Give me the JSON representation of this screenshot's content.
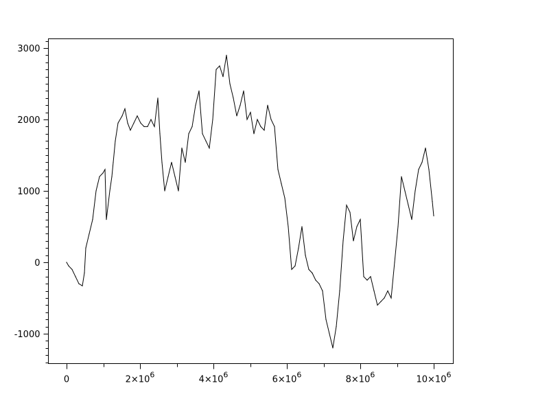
{
  "chart_data": {
    "type": "line",
    "title": "",
    "xlabel": "",
    "ylabel": "",
    "xlim": [
      -500000,
      10500000
    ],
    "ylim": [
      -1420,
      3120
    ],
    "grid": false,
    "line_color": "#000000",
    "x_ticks": [
      {
        "value": 0,
        "base": "0",
        "exp": ""
      },
      {
        "value": 2000000,
        "base": "2×10",
        "exp": "6"
      },
      {
        "value": 4000000,
        "base": "4×10",
        "exp": "6"
      },
      {
        "value": 6000000,
        "base": "6×10",
        "exp": "6"
      },
      {
        "value": 8000000,
        "base": "8×10",
        "exp": "6"
      },
      {
        "value": 10000000,
        "base": "10×10",
        "exp": "6"
      }
    ],
    "y_ticks": [
      {
        "value": 3000,
        "label": "3000"
      },
      {
        "value": 2000,
        "label": "2000"
      },
      {
        "value": 1000,
        "label": "1000"
      },
      {
        "value": 0,
        "label": "0"
      },
      {
        "value": -1000,
        "label": "-1000"
      }
    ],
    "x": [
      0,
      56000,
      150000,
      243000,
      336000,
      430000,
      486000,
      523000,
      617000,
      710000,
      804000,
      897000,
      991000,
      1047000,
      1084000,
      1178000,
      1234000,
      1271000,
      1327000,
      1402000,
      1514000,
      1589000,
      1664000,
      1738000,
      1832000,
      1925000,
      2019000,
      2112000,
      2206000,
      2299000,
      2393000,
      2486000,
      2542000,
      2598000,
      2673000,
      2766000,
      2860000,
      2953000,
      3047000,
      3140000,
      3234000,
      3327000,
      3421000,
      3514000,
      3607000,
      3701000,
      3794000,
      3888000,
      3981000,
      4075000,
      4168000,
      4262000,
      4355000,
      4449000,
      4542000,
      4636000,
      4729000,
      4822000,
      4916000,
      5009000,
      5103000,
      5196000,
      5290000,
      5383000,
      5477000,
      5570000,
      5664000,
      5757000,
      5850000,
      5944000,
      6037000,
      6131000,
      6224000,
      6318000,
      6411000,
      6505000,
      6598000,
      6692000,
      6785000,
      6879000,
      6972000,
      7065000,
      7159000,
      7252000,
      7346000,
      7439000,
      7533000,
      7626000,
      7720000,
      7813000,
      7907000,
      8000000,
      8093000,
      8187000,
      8280000,
      8374000,
      8467000,
      8561000,
      8654000,
      8748000,
      8841000,
      8935000,
      9028000,
      9121000,
      9215000,
      9308000,
      9402000,
      9495000,
      9589000,
      9682000,
      9776000,
      9869000,
      9963000,
      10000000
    ],
    "y": [
      0,
      -50,
      -100,
      -200,
      -300,
      -330,
      -150,
      200,
      400,
      600,
      1000,
      1200,
      1250,
      1300,
      600,
      1000,
      1200,
      1400,
      1700,
      1950,
      2050,
      2150,
      1950,
      1850,
      1950,
      2050,
      1950,
      1900,
      1900,
      2000,
      1900,
      2300,
      1800,
      1400,
      1000,
      1200,
      1400,
      1200,
      1000,
      1600,
      1400,
      1800,
      1900,
      2200,
      2400,
      1800,
      1700,
      1600,
      2000,
      2700,
      2750,
      2600,
      2900,
      2500,
      2300,
      2050,
      2200,
      2400,
      2000,
      2100,
      1800,
      2000,
      1900,
      1850,
      2200,
      2000,
      1900,
      1300,
      1100,
      900,
      500,
      -100,
      -50,
      200,
      500,
      100,
      -100,
      -150,
      -250,
      -300,
      -400,
      -800,
      -1000,
      -1200,
      -900,
      -400,
      300,
      800,
      700,
      300,
      500,
      600,
      -200,
      -250,
      -200,
      -400,
      -600,
      -550,
      -500,
      -400,
      -500,
      0,
      500,
      1200,
      1000,
      800,
      600,
      1000,
      1300,
      1400,
      1600,
      1300,
      850,
      650
    ]
  }
}
